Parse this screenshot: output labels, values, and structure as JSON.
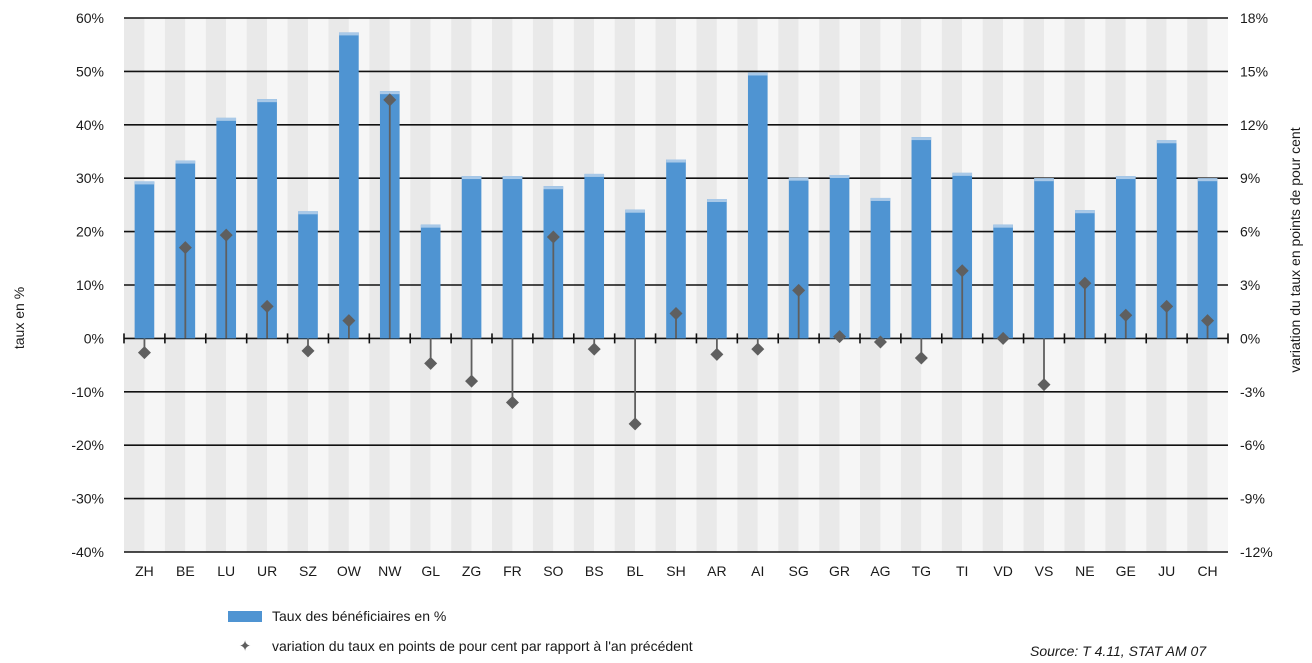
{
  "chart_data": {
    "type": "bar",
    "categories": [
      "ZH",
      "BE",
      "LU",
      "UR",
      "SZ",
      "OW",
      "NW",
      "GL",
      "ZG",
      "FR",
      "SO",
      "BS",
      "BL",
      "SH",
      "AR",
      "AI",
      "SG",
      "GR",
      "AG",
      "TG",
      "TI",
      "VD",
      "VS",
      "NE",
      "GE",
      "JU",
      "CH"
    ],
    "series": [
      {
        "name": "Taux des bénéficiaires en %",
        "type": "bar",
        "axis": "left",
        "values": [
          29.4,
          33.3,
          41.3,
          44.8,
          23.8,
          57.3,
          46.3,
          21.3,
          30.4,
          30.4,
          28.5,
          30.8,
          24.1,
          33.5,
          26.1,
          49.8,
          30.1,
          30.6,
          26.3,
          37.7,
          31.0,
          21.3,
          30.0,
          24.0,
          30.4,
          37.1,
          30.0
        ],
        "color": "#4f94d2"
      },
      {
        "name": "variation du taux en points de pour cent par rapport à l'an précédent",
        "type": "lollipop",
        "axis": "right",
        "values": [
          -0.8,
          5.1,
          5.8,
          1.8,
          -0.7,
          1.0,
          13.4,
          -1.4,
          -2.4,
          -3.6,
          5.7,
          -0.6,
          -4.8,
          1.4,
          -0.9,
          -0.6,
          2.7,
          0.1,
          -0.2,
          -1.1,
          3.8,
          0.0,
          -2.6,
          3.1,
          1.3,
          1.8,
          1.0
        ],
        "color": "#5f5f5f"
      }
    ],
    "ylabel": "taux en %",
    "ylabel_right": "variation du taux en points de pour cent",
    "ylim": [
      -40,
      60
    ],
    "ylim_right": [
      -12,
      18
    ],
    "yticks": [
      "60%",
      "50%",
      "40%",
      "30%",
      "20%",
      "10%",
      "0%",
      "-10%",
      "-20%",
      "-30%",
      "-40%"
    ],
    "yticks_right": [
      "18%",
      "15%",
      "12%",
      "9%",
      "6%",
      "3%",
      "0%",
      "-3%",
      "-6%",
      "-9%",
      "-12%"
    ],
    "grid": true,
    "legend_position": "bottom-left"
  },
  "legend": {
    "bars": "Taux des bénéficiaires en %",
    "points": "variation du taux en points de pour cent par rapport à l'an précédent"
  },
  "source": "Source: T 4.11, STAT AM 07"
}
